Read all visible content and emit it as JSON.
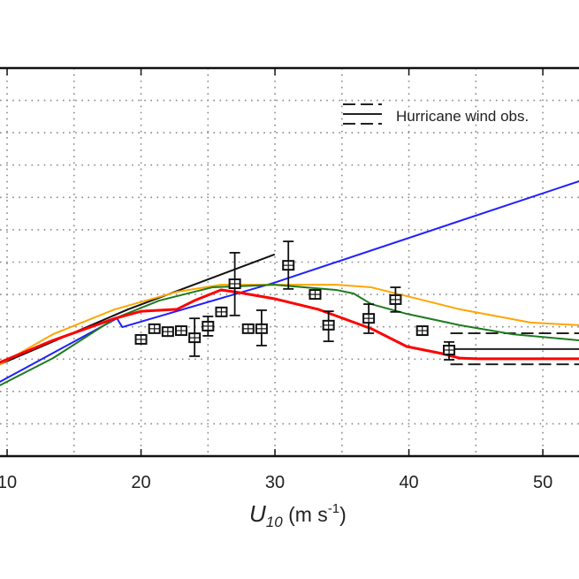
{
  "chart_data": {
    "type": "line",
    "xlabel": {
      "symbol": "U",
      "subscript": "10",
      "units_open": " (m s",
      "units_sup": "-1",
      "units_close": ")"
    },
    "ylabel": "",
    "xlim": [
      9.47,
      52.7
    ],
    "ylim": [
      0,
      12
    ],
    "xticks": [
      10,
      20,
      30,
      40,
      50
    ],
    "tick_labels": [
      "10",
      "20",
      "30",
      "40",
      "50"
    ],
    "grid": true,
    "legend": {
      "position": "top-right",
      "entries": [
        "Hurricane wind obs."
      ]
    },
    "colors": {
      "black": "#111111",
      "blue": "#1f1fff",
      "orange": "#ffa500",
      "green": "#1e7a1e",
      "red": "#ff0000"
    },
    "series": [
      {
        "color": "#111111",
        "points": [
          [
            9.47,
            2.84
          ],
          [
            19.04,
            4.54
          ],
          [
            29.93,
            6.23
          ]
        ]
      },
      {
        "color": "#1f1fff",
        "points": [
          [
            9.47,
            2.3
          ],
          [
            18.2,
            4.26
          ],
          [
            18.6,
            3.99
          ],
          [
            29.93,
            5.36
          ],
          [
            52.7,
            8.5
          ]
        ]
      },
      {
        "color": "#ffa500",
        "points": [
          [
            9.47,
            2.84
          ],
          [
            13.43,
            3.77
          ],
          [
            18.05,
            4.54
          ],
          [
            22.67,
            5.08
          ],
          [
            25.97,
            5.3
          ],
          [
            29.93,
            5.3
          ],
          [
            34.55,
            5.3
          ],
          [
            37.2,
            5.22
          ],
          [
            39.84,
            4.95
          ],
          [
            43.8,
            4.54
          ],
          [
            49.08,
            4.13
          ],
          [
            52.7,
            4.05
          ]
        ]
      },
      {
        "color": "#1e7a1e",
        "points": [
          [
            9.47,
            2.19
          ],
          [
            13.43,
            3.03
          ],
          [
            18.05,
            4.26
          ],
          [
            21.35,
            4.81
          ],
          [
            25.31,
            5.22
          ],
          [
            29.93,
            5.3
          ],
          [
            34.55,
            5.14
          ],
          [
            35.87,
            5.03
          ],
          [
            37.2,
            4.7
          ],
          [
            39.84,
            4.4
          ],
          [
            43.8,
            4.05
          ],
          [
            47.76,
            3.77
          ],
          [
            52.7,
            3.58
          ]
        ]
      },
      {
        "color": "#ff0000",
        "points": [
          [
            9.47,
            2.9
          ],
          [
            13.43,
            3.58
          ],
          [
            18.05,
            4.26
          ],
          [
            20.03,
            4.48
          ],
          [
            22.67,
            4.54
          ],
          [
            23.99,
            4.81
          ],
          [
            25.97,
            5.14
          ],
          [
            27.29,
            5.06
          ],
          [
            29.93,
            4.87
          ],
          [
            33.23,
            4.54
          ],
          [
            37.2,
            3.94
          ],
          [
            39.84,
            3.39
          ],
          [
            42.48,
            3.17
          ],
          [
            43.8,
            3.03
          ],
          [
            45.12,
            3.01
          ],
          [
            52.7,
            3.01
          ]
        ]
      }
    ],
    "observations": [
      {
        "x": 20,
        "y": 3.61
      },
      {
        "x": 21,
        "y": 3.94
      },
      {
        "x": 22,
        "y": 3.85
      },
      {
        "x": 23,
        "y": 3.88
      },
      {
        "x": 24,
        "y": 3.66,
        "err": [
          3.09,
          4.26
        ]
      },
      {
        "x": 25,
        "y": 4.02,
        "err": [
          3.72,
          4.32
        ]
      },
      {
        "x": 26,
        "y": 4.46
      },
      {
        "x": 27,
        "y": 5.33,
        "err": [
          4.35,
          6.29
        ]
      },
      {
        "x": 28,
        "y": 3.94
      },
      {
        "x": 29,
        "y": 3.94,
        "err": [
          3.42,
          4.51
        ]
      },
      {
        "x": 31,
        "y": 5.9,
        "err": [
          5.17,
          6.64
        ]
      },
      {
        "x": 33,
        "y": 5.0
      },
      {
        "x": 34,
        "y": 4.05,
        "err": [
          3.55,
          4.48
        ]
      },
      {
        "x": 37,
        "y": 4.26,
        "err": [
          3.8,
          4.7
        ]
      },
      {
        "x": 39,
        "y": 4.84,
        "err": [
          4.46,
          5.22
        ]
      },
      {
        "x": 41,
        "y": 3.88
      },
      {
        "x": 43,
        "y": 3.28,
        "err": [
          2.98,
          3.53
        ]
      }
    ],
    "hurricane_obs": {
      "x_start": 43.1,
      "mean": 3.31,
      "upper": 3.8,
      "lower": 2.84
    }
  }
}
